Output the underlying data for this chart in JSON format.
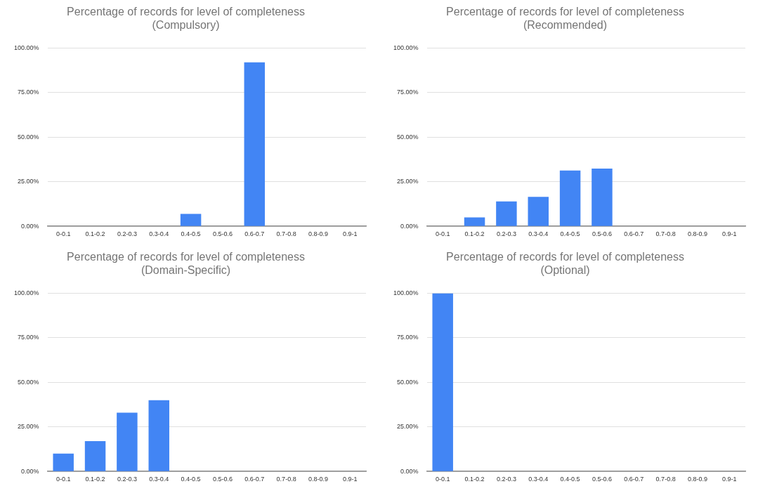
{
  "chart_data": [
    {
      "type": "bar",
      "title": "Percentage of records for level of completeness\n(Compulsory)",
      "categories": [
        "0-0.1",
        "0.1-0.2",
        "0.2-0.3",
        "0.3-0.4",
        "0.4-0.5",
        "0.5-0.6",
        "0.6-0.7",
        "0.7-0.8",
        "0.8-0.9",
        "0.9-1"
      ],
      "values": [
        0,
        0,
        0,
        0,
        7,
        0,
        92,
        0,
        0,
        0
      ],
      "color": "#4285f4",
      "ylim": [
        0,
        100
      ],
      "yticks": [
        {
          "value": 0,
          "label": "0.00%"
        },
        {
          "value": 25,
          "label": "25.00%"
        },
        {
          "value": 50,
          "label": "50.00%"
        },
        {
          "value": 75,
          "label": "75.00%"
        },
        {
          "value": 100,
          "label": "100.00%"
        }
      ],
      "grid": "y",
      "legend": false
    },
    {
      "type": "bar",
      "title": "Percentage of records for level of completeness\n(Recommended)",
      "categories": [
        "0-0.1",
        "0.1-0.2",
        "0.2-0.3",
        "0.3-0.4",
        "0.4-0.5",
        "0.5-0.6",
        "0.6-0.7",
        "0.7-0.8",
        "0.8-0.9",
        "0.9-1"
      ],
      "values": [
        0,
        5,
        14,
        16.5,
        31.3,
        32.4,
        0,
        0,
        0,
        0
      ],
      "color": "#4285f4",
      "ylim": [
        0,
        100
      ],
      "yticks": [
        {
          "value": 0,
          "label": "0.00%"
        },
        {
          "value": 25,
          "label": "25.00%"
        },
        {
          "value": 50,
          "label": "50.00%"
        },
        {
          "value": 75,
          "label": "75.00%"
        },
        {
          "value": 100,
          "label": "100.00%"
        }
      ],
      "grid": "y",
      "legend": false
    },
    {
      "type": "bar",
      "title": "Percentage of records for level of completeness\n(Domain-Specific)",
      "categories": [
        "0-0.1",
        "0.1-0.2",
        "0.2-0.3",
        "0.3-0.4",
        "0.4-0.5",
        "0.5-0.6",
        "0.6-0.7",
        "0.7-0.8",
        "0.8-0.9",
        "0.9-1"
      ],
      "values": [
        10,
        17,
        33,
        40,
        0,
        0,
        0,
        0,
        0,
        0
      ],
      "color": "#4285f4",
      "ylim": [
        0,
        100
      ],
      "yticks": [
        {
          "value": 0,
          "label": "0.00%"
        },
        {
          "value": 25,
          "label": "25.00%"
        },
        {
          "value": 50,
          "label": "50.00%"
        },
        {
          "value": 75,
          "label": "75.00%"
        },
        {
          "value": 100,
          "label": "100.00%"
        }
      ],
      "grid": "y",
      "legend": false
    },
    {
      "type": "bar",
      "title": "Percentage of records for level of completeness\n(Optional)",
      "categories": [
        "0-0.1",
        "0.1-0.2",
        "0.2-0.3",
        "0.3-0.4",
        "0.4-0.5",
        "0.5-0.6",
        "0.6-0.7",
        "0.7-0.8",
        "0.8-0.9",
        "0.9-1"
      ],
      "values": [
        100,
        0,
        0,
        0,
        0,
        0,
        0,
        0,
        0,
        0
      ],
      "color": "#4285f4",
      "ylim": [
        0,
        100
      ],
      "yticks": [
        {
          "value": 0,
          "label": "0.00%"
        },
        {
          "value": 25,
          "label": "25.00%"
        },
        {
          "value": 50,
          "label": "50.00%"
        },
        {
          "value": 75,
          "label": "75.00%"
        },
        {
          "value": 100,
          "label": "100.00%"
        }
      ],
      "grid": "y",
      "legend": false
    }
  ]
}
